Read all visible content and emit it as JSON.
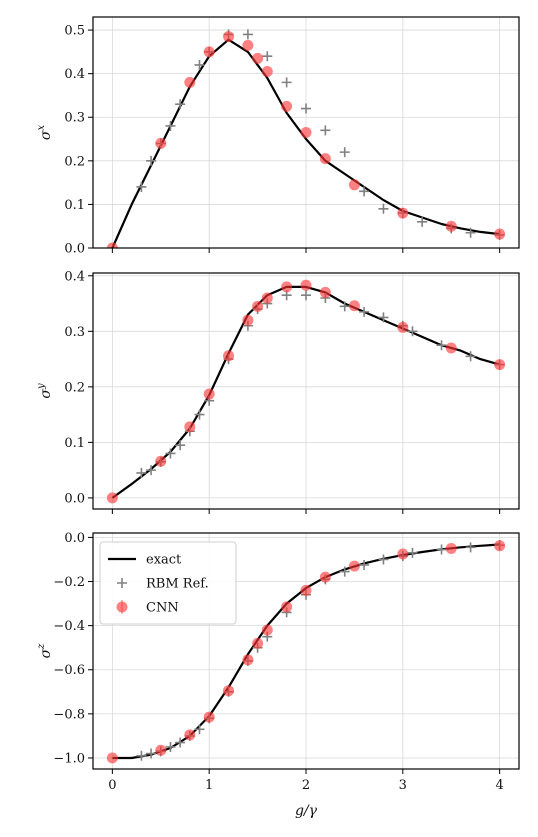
{
  "chart_data": [
    {
      "type": "line",
      "ylabel": "σ^x",
      "xlim": [
        -0.2,
        4.2
      ],
      "ylim": [
        0,
        0.53
      ],
      "xticks": [
        0,
        1,
        2,
        3,
        4
      ],
      "yticks": [
        0.0,
        0.1,
        0.2,
        0.3,
        0.4,
        0.5
      ],
      "ytick_labels": [
        "0.0",
        "0.1",
        "0.2",
        "0.3",
        "0.4",
        "0.5"
      ],
      "grid": true,
      "series": [
        {
          "name": "exact",
          "style": "line",
          "color": "#000000",
          "x": [
            0,
            0.2,
            0.4,
            0.6,
            0.8,
            1.0,
            1.2,
            1.4,
            1.6,
            1.8,
            2.0,
            2.2,
            2.4,
            2.6,
            2.8,
            3.0,
            3.2,
            3.4,
            3.6,
            3.8,
            4.0
          ],
          "y": [
            0.0,
            0.1,
            0.19,
            0.28,
            0.37,
            0.44,
            0.478,
            0.45,
            0.39,
            0.31,
            0.25,
            0.2,
            0.17,
            0.14,
            0.11,
            0.085,
            0.07,
            0.055,
            0.045,
            0.037,
            0.032
          ]
        },
        {
          "name": "RBM Ref.",
          "style": "plus",
          "color": "#808080",
          "x": [
            0.3,
            0.4,
            0.5,
            0.6,
            0.7,
            0.9,
            1.0,
            1.2,
            1.4,
            1.6,
            1.8,
            2.0,
            2.2,
            2.4,
            2.6,
            2.8,
            3.0,
            3.2,
            3.5,
            3.7,
            4.0
          ],
          "y": [
            0.14,
            0.2,
            0.24,
            0.28,
            0.33,
            0.42,
            0.45,
            0.49,
            0.49,
            0.44,
            0.38,
            0.32,
            0.27,
            0.22,
            0.13,
            0.09,
            0.08,
            0.06,
            0.045,
            0.035,
            0.03
          ]
        },
        {
          "name": "CNN",
          "style": "circle",
          "color": "#ff3333",
          "x": [
            0.0,
            0.5,
            0.8,
            1.0,
            1.2,
            1.4,
            1.5,
            1.6,
            1.8,
            2.0,
            2.2,
            2.5,
            3.0,
            3.5,
            4.0
          ],
          "y": [
            0.0,
            0.24,
            0.38,
            0.45,
            0.485,
            0.465,
            0.435,
            0.405,
            0.325,
            0.265,
            0.205,
            0.145,
            0.08,
            0.05,
            0.032
          ]
        }
      ]
    },
    {
      "type": "line",
      "ylabel": "σ^y",
      "xlim": [
        -0.2,
        4.2
      ],
      "ylim": [
        -0.02,
        0.405
      ],
      "xticks": [
        0,
        1,
        2,
        3,
        4
      ],
      "yticks": [
        0.0,
        0.1,
        0.2,
        0.3,
        0.4
      ],
      "ytick_labels": [
        "0.0",
        "0.1",
        "0.2",
        "0.3",
        "0.4"
      ],
      "grid": true,
      "series": [
        {
          "name": "exact",
          "style": "line",
          "color": "#000000",
          "x": [
            0,
            0.2,
            0.4,
            0.6,
            0.8,
            1.0,
            1.2,
            1.4,
            1.6,
            1.8,
            2.0,
            2.2,
            2.4,
            2.6,
            2.8,
            3.0,
            3.2,
            3.4,
            3.6,
            3.8,
            4.0
          ],
          "y": [
            0.0,
            0.025,
            0.052,
            0.083,
            0.125,
            0.185,
            0.26,
            0.33,
            0.365,
            0.38,
            0.38,
            0.37,
            0.35,
            0.335,
            0.32,
            0.305,
            0.29,
            0.275,
            0.265,
            0.25,
            0.24
          ]
        },
        {
          "name": "RBM Ref.",
          "style": "plus",
          "color": "#808080",
          "x": [
            0.3,
            0.4,
            0.5,
            0.6,
            0.7,
            0.8,
            0.9,
            1.0,
            1.2,
            1.4,
            1.5,
            1.6,
            1.8,
            2.0,
            2.2,
            2.4,
            2.6,
            2.8,
            3.0,
            3.1,
            3.4,
            3.7,
            4.0
          ],
          "y": [
            0.045,
            0.05,
            0.065,
            0.08,
            0.095,
            0.12,
            0.15,
            0.175,
            0.25,
            0.31,
            0.34,
            0.35,
            0.365,
            0.365,
            0.36,
            0.345,
            0.335,
            0.325,
            0.31,
            0.3,
            0.275,
            0.255,
            0.24
          ]
        },
        {
          "name": "CNN",
          "style": "circle",
          "color": "#ff3333",
          "x": [
            0.0,
            0.5,
            0.8,
            1.0,
            1.2,
            1.4,
            1.5,
            1.6,
            1.8,
            2.0,
            2.2,
            2.5,
            3.0,
            3.5,
            4.0
          ],
          "y": [
            0.0,
            0.066,
            0.128,
            0.187,
            0.256,
            0.32,
            0.345,
            0.36,
            0.38,
            0.383,
            0.37,
            0.346,
            0.307,
            0.27,
            0.24
          ]
        }
      ]
    },
    {
      "type": "line",
      "ylabel": "σ^z",
      "xlim": [
        -0.2,
        4.2
      ],
      "ylim": [
        -1.05,
        0.02
      ],
      "xticks": [
        0,
        1,
        2,
        3,
        4
      ],
      "xtick_labels": [
        "0",
        "1",
        "2",
        "3",
        "4"
      ],
      "xlabel": "g/γ",
      "yticks": [
        -1.0,
        -0.8,
        -0.6,
        -0.4,
        -0.2,
        0.0
      ],
      "ytick_labels": [
        "−1.0",
        "−0.8",
        "−0.6",
        "−0.4",
        "−0.2",
        "0.0"
      ],
      "grid": true,
      "legend": {
        "position": "upper-left",
        "entries": [
          "exact",
          "RBM Ref.",
          "CNN"
        ]
      },
      "series": [
        {
          "name": "exact",
          "style": "line",
          "color": "#000000",
          "x": [
            0,
            0.2,
            0.4,
            0.6,
            0.8,
            1.0,
            1.2,
            1.4,
            1.6,
            1.8,
            2.0,
            2.2,
            2.4,
            2.6,
            2.8,
            3.0,
            3.2,
            3.4,
            3.6,
            3.8,
            4.0
          ],
          "y": [
            -1.0,
            -1.0,
            -0.985,
            -0.955,
            -0.9,
            -0.81,
            -0.68,
            -0.53,
            -0.4,
            -0.3,
            -0.23,
            -0.18,
            -0.145,
            -0.118,
            -0.097,
            -0.08,
            -0.066,
            -0.054,
            -0.045,
            -0.038,
            -0.032
          ]
        },
        {
          "name": "RBM Ref.",
          "style": "plus",
          "color": "#808080",
          "x": [
            0.3,
            0.4,
            0.5,
            0.6,
            0.7,
            0.8,
            0.9,
            1.0,
            1.2,
            1.4,
            1.5,
            1.6,
            1.8,
            2.0,
            2.2,
            2.4,
            2.6,
            2.8,
            3.0,
            3.1,
            3.4,
            3.7,
            4.0
          ],
          "y": [
            -0.99,
            -0.98,
            -0.97,
            -0.95,
            -0.93,
            -0.9,
            -0.87,
            -0.82,
            -0.7,
            -0.56,
            -0.5,
            -0.45,
            -0.34,
            -0.26,
            -0.19,
            -0.155,
            -0.125,
            -0.1,
            -0.085,
            -0.07,
            -0.055,
            -0.045,
            -0.035
          ]
        },
        {
          "name": "CNN",
          "style": "circle",
          "color": "#ff3333",
          "x": [
            0.0,
            0.5,
            0.8,
            1.0,
            1.2,
            1.4,
            1.5,
            1.6,
            1.8,
            2.0,
            2.2,
            2.5,
            3.0,
            3.5,
            4.0
          ],
          "y": [
            -1.0,
            -0.965,
            -0.895,
            -0.815,
            -0.695,
            -0.555,
            -0.48,
            -0.42,
            -0.315,
            -0.24,
            -0.18,
            -0.13,
            -0.075,
            -0.05,
            -0.038
          ]
        }
      ]
    }
  ]
}
